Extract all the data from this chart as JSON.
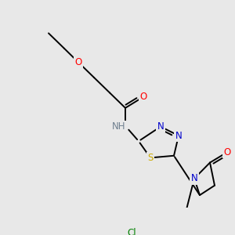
{
  "background_color": "#e8e8e8",
  "line_color": "#000000",
  "atom_colors": {
    "O": "#ff0000",
    "N": "#0000cd",
    "S": "#ccaa00",
    "Cl": "#008000",
    "C": "#000000",
    "H": "#708090"
  },
  "lw": 1.4,
  "font_size": 8.5
}
